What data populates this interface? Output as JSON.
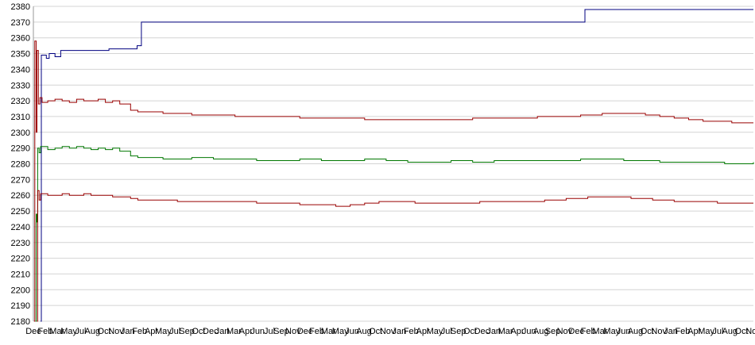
{
  "colors": {
    "background": "#ffffff",
    "grid": "#d4d4d4",
    "axis": "#9a9a9a",
    "text": "#000000",
    "series_blue": "#000080",
    "series_red": "#990000",
    "series_green": "#007700"
  },
  "chart_data": {
    "type": "line",
    "title": "",
    "xlabel": "",
    "ylabel": "",
    "ylim": [
      2180,
      2380
    ],
    "ytick_step": 10,
    "grid": true,
    "legend_position": "none",
    "yticks": [
      2380,
      2370,
      2360,
      2350,
      2340,
      2330,
      2320,
      2310,
      2300,
      2290,
      2280,
      2270,
      2260,
      2250,
      2240,
      2230,
      2220,
      2210,
      2200,
      2190,
      2180
    ],
    "x_axis_labels": [
      "Dec",
      "Feb",
      "Mar",
      "May",
      "Jul",
      "Aug",
      "Oct",
      "Nov",
      "Jan",
      "Feb",
      "Apr",
      "May",
      "Jul",
      "Sep",
      "Oct",
      "Dec",
      "Jan",
      "Mar",
      "Apr",
      "Jun",
      "Jul",
      "Sep",
      "Nov",
      "Dec",
      "Feb",
      "Mar",
      "May",
      "Jun",
      "Aug",
      "Oct",
      "Nov",
      "Jan",
      "Feb",
      "Apr",
      "May",
      "Jul",
      "Sep",
      "Oct",
      "Dec",
      "Jan",
      "Mar",
      "Apr",
      "Jun",
      "Aug",
      "Sep",
      "Nov",
      "Dec",
      "Feb",
      "Mar",
      "May",
      "Jun",
      "Aug",
      "Oct",
      "Nov",
      "Jan",
      "Feb",
      "Apr",
      "May",
      "Jul",
      "Aug",
      "Oct",
      "Nov"
    ],
    "series": [
      {
        "name": "line-top-blue",
        "color_key": "series_blue",
        "points": [
          [
            0.01,
            2180
          ],
          [
            0.011,
            2349
          ],
          [
            0.018,
            2347
          ],
          [
            0.022,
            2350
          ],
          [
            0.03,
            2348
          ],
          [
            0.038,
            2352
          ],
          [
            0.1,
            2352
          ],
          [
            0.105,
            2353
          ],
          [
            0.14,
            2353
          ],
          [
            0.144,
            2355
          ],
          [
            0.149,
            2355
          ],
          [
            0.15,
            2370
          ],
          [
            0.764,
            2370
          ],
          [
            0.766,
            2378
          ],
          [
            1.0,
            2378
          ]
        ]
      },
      {
        "name": "line-upper-red",
        "color_key": "series_red",
        "points": [
          [
            0.001,
            2180
          ],
          [
            0.002,
            2358
          ],
          [
            0.004,
            2300
          ],
          [
            0.005,
            2352
          ],
          [
            0.007,
            2318
          ],
          [
            0.009,
            2322
          ],
          [
            0.012,
            2319
          ],
          [
            0.02,
            2320
          ],
          [
            0.03,
            2321
          ],
          [
            0.04,
            2320
          ],
          [
            0.05,
            2319
          ],
          [
            0.06,
            2321
          ],
          [
            0.07,
            2320
          ],
          [
            0.08,
            2320
          ],
          [
            0.09,
            2321
          ],
          [
            0.1,
            2319
          ],
          [
            0.11,
            2320
          ],
          [
            0.12,
            2318
          ],
          [
            0.13,
            2318
          ],
          [
            0.135,
            2314
          ],
          [
            0.145,
            2313
          ],
          [
            0.16,
            2313
          ],
          [
            0.18,
            2312
          ],
          [
            0.2,
            2312
          ],
          [
            0.22,
            2311
          ],
          [
            0.25,
            2311
          ],
          [
            0.28,
            2310
          ],
          [
            0.31,
            2310
          ],
          [
            0.34,
            2310
          ],
          [
            0.37,
            2309
          ],
          [
            0.4,
            2309
          ],
          [
            0.43,
            2309
          ],
          [
            0.46,
            2308
          ],
          [
            0.49,
            2308
          ],
          [
            0.52,
            2308
          ],
          [
            0.55,
            2308
          ],
          [
            0.58,
            2308
          ],
          [
            0.61,
            2309
          ],
          [
            0.64,
            2309
          ],
          [
            0.67,
            2309
          ],
          [
            0.7,
            2310
          ],
          [
            0.73,
            2310
          ],
          [
            0.76,
            2311
          ],
          [
            0.79,
            2312
          ],
          [
            0.82,
            2312
          ],
          [
            0.85,
            2311
          ],
          [
            0.87,
            2310
          ],
          [
            0.89,
            2309
          ],
          [
            0.91,
            2308
          ],
          [
            0.93,
            2307
          ],
          [
            0.95,
            2307
          ],
          [
            0.97,
            2306
          ],
          [
            1.0,
            2306
          ]
        ]
      },
      {
        "name": "line-middle-green",
        "color_key": "series_green",
        "points": [
          [
            0.003,
            2180
          ],
          [
            0.004,
            2248
          ],
          [
            0.005,
            2243
          ],
          [
            0.006,
            2290
          ],
          [
            0.008,
            2287
          ],
          [
            0.01,
            2291
          ],
          [
            0.02,
            2289
          ],
          [
            0.03,
            2290
          ],
          [
            0.04,
            2291
          ],
          [
            0.05,
            2290
          ],
          [
            0.06,
            2291
          ],
          [
            0.07,
            2290
          ],
          [
            0.08,
            2289
          ],
          [
            0.09,
            2290
          ],
          [
            0.1,
            2289
          ],
          [
            0.11,
            2290
          ],
          [
            0.12,
            2288
          ],
          [
            0.13,
            2288
          ],
          [
            0.135,
            2285
          ],
          [
            0.145,
            2284
          ],
          [
            0.16,
            2284
          ],
          [
            0.18,
            2283
          ],
          [
            0.2,
            2283
          ],
          [
            0.22,
            2284
          ],
          [
            0.25,
            2283
          ],
          [
            0.28,
            2283
          ],
          [
            0.31,
            2282
          ],
          [
            0.34,
            2282
          ],
          [
            0.37,
            2283
          ],
          [
            0.4,
            2282
          ],
          [
            0.43,
            2282
          ],
          [
            0.46,
            2283
          ],
          [
            0.49,
            2282
          ],
          [
            0.52,
            2281
          ],
          [
            0.55,
            2281
          ],
          [
            0.58,
            2282
          ],
          [
            0.61,
            2281
          ],
          [
            0.64,
            2282
          ],
          [
            0.67,
            2282
          ],
          [
            0.7,
            2282
          ],
          [
            0.73,
            2282
          ],
          [
            0.76,
            2283
          ],
          [
            0.79,
            2283
          ],
          [
            0.82,
            2282
          ],
          [
            0.85,
            2282
          ],
          [
            0.87,
            2281
          ],
          [
            0.9,
            2281
          ],
          [
            0.93,
            2281
          ],
          [
            0.96,
            2280
          ],
          [
            1.0,
            2281
          ]
        ]
      },
      {
        "name": "line-lower-red",
        "color_key": "series_red",
        "points": [
          [
            0.005,
            2180
          ],
          [
            0.006,
            2263
          ],
          [
            0.008,
            2257
          ],
          [
            0.01,
            2261
          ],
          [
            0.02,
            2260
          ],
          [
            0.03,
            2260
          ],
          [
            0.04,
            2261
          ],
          [
            0.05,
            2260
          ],
          [
            0.06,
            2260
          ],
          [
            0.07,
            2261
          ],
          [
            0.08,
            2260
          ],
          [
            0.09,
            2260
          ],
          [
            0.1,
            2260
          ],
          [
            0.11,
            2259
          ],
          [
            0.12,
            2259
          ],
          [
            0.13,
            2259
          ],
          [
            0.135,
            2258
          ],
          [
            0.145,
            2257
          ],
          [
            0.16,
            2257
          ],
          [
            0.18,
            2257
          ],
          [
            0.2,
            2256
          ],
          [
            0.22,
            2256
          ],
          [
            0.25,
            2256
          ],
          [
            0.28,
            2256
          ],
          [
            0.31,
            2255
          ],
          [
            0.34,
            2255
          ],
          [
            0.37,
            2254
          ],
          [
            0.4,
            2254
          ],
          [
            0.42,
            2253
          ],
          [
            0.44,
            2254
          ],
          [
            0.46,
            2255
          ],
          [
            0.48,
            2256
          ],
          [
            0.5,
            2256
          ],
          [
            0.53,
            2255
          ],
          [
            0.56,
            2255
          ],
          [
            0.59,
            2255
          ],
          [
            0.62,
            2256
          ],
          [
            0.65,
            2256
          ],
          [
            0.68,
            2256
          ],
          [
            0.71,
            2257
          ],
          [
            0.74,
            2258
          ],
          [
            0.77,
            2259
          ],
          [
            0.8,
            2259
          ],
          [
            0.83,
            2258
          ],
          [
            0.86,
            2257
          ],
          [
            0.89,
            2256
          ],
          [
            0.92,
            2256
          ],
          [
            0.95,
            2255
          ],
          [
            0.98,
            2255
          ],
          [
            1.0,
            2255
          ]
        ]
      }
    ]
  }
}
